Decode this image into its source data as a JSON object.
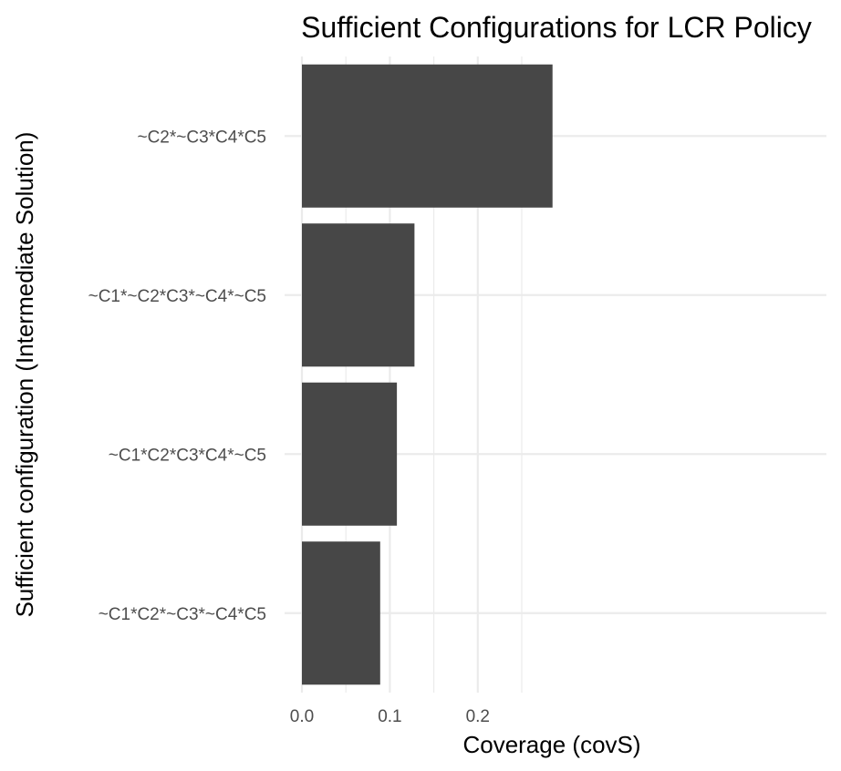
{
  "chart_data": {
    "type": "bar",
    "orientation": "horizontal",
    "title": "Sufficient Configurations for LCR Policy",
    "xlabel": "Coverage (covS)",
    "ylabel": "Sufficient configuration (Intermediate Solution)",
    "categories": [
      "~C2*~C3*C4*C5",
      "~C1*~C2*C3*~C4*~C5",
      "~C1*C2*C3*C4*~C5",
      "~C1*C2*~C3*~C4*C5"
    ],
    "values": [
      0.285,
      0.128,
      0.108,
      0.089
    ],
    "xlim": [
      0,
      0.3
    ],
    "xticks": [
      0.0,
      0.1,
      0.2
    ],
    "xtick_labels": [
      "0.0",
      "0.1",
      "0.2"
    ],
    "grid": true,
    "bar_color": "#474747",
    "grid_color": "#ebebeb"
  }
}
